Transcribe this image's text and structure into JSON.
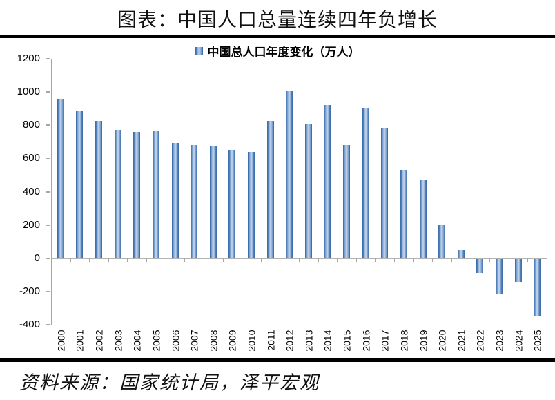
{
  "page": {
    "title": "图表：中国人口总量连续四年负增长",
    "source_note": "资料来源：国家统计局，泽平宏观"
  },
  "legend": {
    "label": "中国总人口年度变化（万人）"
  },
  "colors": {
    "bar_edge": "#3e6fae",
    "bar_mid": "#87a9d2",
    "bar_center": "#c6d8ee",
    "axis": "#a6a6a6",
    "text": "#000000",
    "rule": "#000000"
  },
  "chart_data": {
    "type": "bar",
    "title": "图表：中国人口总量连续四年负增长",
    "legend": [
      "中国总人口年度变化（万人）"
    ],
    "legend_position": "top-center",
    "categories": [
      "2000",
      "2001",
      "2002",
      "2003",
      "2004",
      "2005",
      "2006",
      "2007",
      "2008",
      "2009",
      "2010",
      "2011",
      "2012",
      "2013",
      "2014",
      "2015",
      "2016",
      "2017",
      "2018",
      "2019",
      "2020",
      "2021",
      "2022",
      "2023",
      "2024",
      "2025"
    ],
    "values": [
      957,
      884,
      826,
      774,
      761,
      768,
      692,
      681,
      673,
      652,
      641,
      825,
      1006,
      804,
      920,
      680,
      906,
      779,
      530,
      467,
      204,
      48,
      -85,
      -208,
      -139,
      -340
    ],
    "xlabel": "",
    "ylabel": "",
    "ylim": [
      -400,
      1200
    ],
    "ytick_step": 200,
    "grid": false,
    "unit": "万人",
    "source": "资料来源：国家统计局，泽平宏观"
  }
}
